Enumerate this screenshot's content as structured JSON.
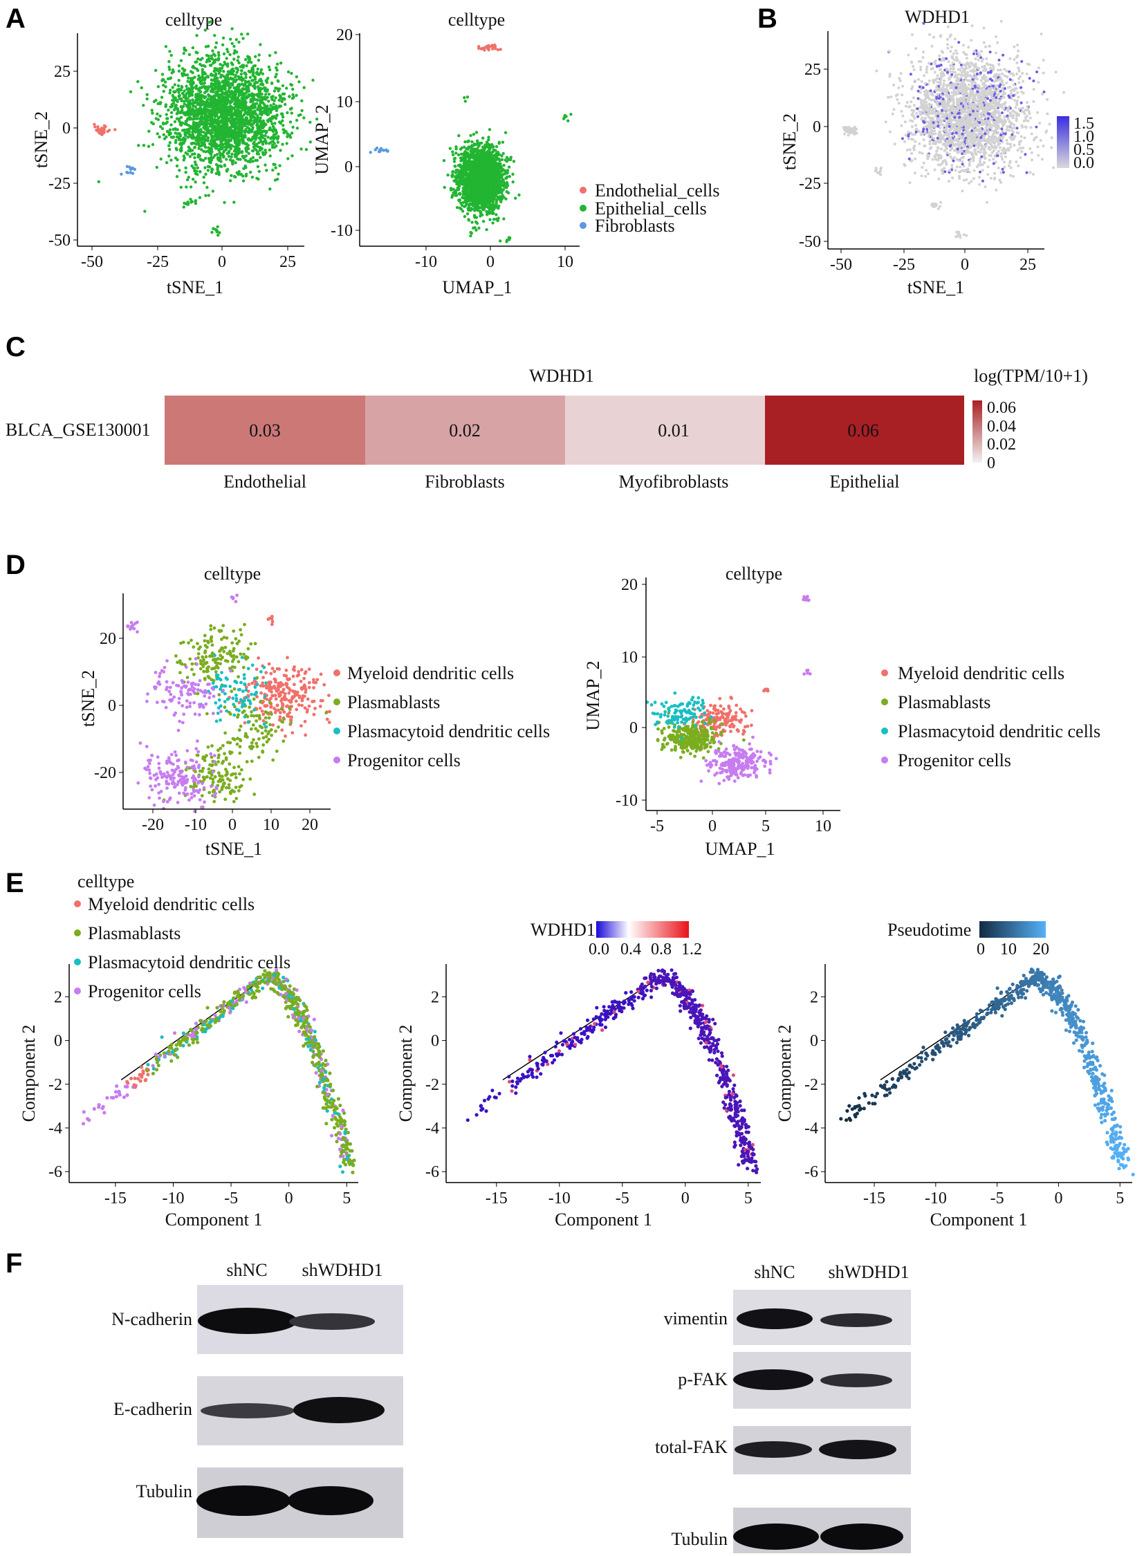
{
  "panels": [
    "A",
    "B",
    "C",
    "D",
    "E",
    "F"
  ],
  "panel_a": {
    "tsne": {
      "title": "celltype",
      "xlabel": "tSNE_1",
      "ylabel": "tSNE_2",
      "xticks": [
        "-50",
        "-25",
        "0",
        "25"
      ],
      "yticks": [
        "25",
        "0",
        "-25",
        "-50"
      ]
    },
    "umap": {
      "title": "celltype",
      "xlabel": "UMAP_1",
      "ylabel": "UMAP_2",
      "xticks": [
        "-10",
        "0",
        "10"
      ],
      "yticks": [
        "20",
        "10",
        "0",
        "-10"
      ]
    },
    "legend": [
      {
        "label": "Endothelial_cells",
        "color": "#f0706a"
      },
      {
        "label": "Epithelial_cells",
        "color": "#22b532"
      },
      {
        "label": "Fibroblasts",
        "color": "#5b98e0"
      }
    ]
  },
  "panel_b": {
    "title": "WDHD1",
    "xlabel": "tSNE_1",
    "ylabel": "tSNE_2",
    "xticks": [
      "-50",
      "-25",
      "0",
      "25"
    ],
    "yticks": [
      "25",
      "0",
      "-25",
      "-50"
    ],
    "colorbar": [
      "1.5",
      "1.0",
      "0.5",
      "0.0"
    ]
  },
  "panel_c": {
    "title": "WDHD1",
    "row_label": "BLCA_GSE130001",
    "legend_title": "log(TPM/10+1)",
    "colorbar": [
      "0.06",
      "0.04",
      "0.02",
      "0"
    ],
    "cells": [
      {
        "label": "Endothelial",
        "value": "0.03",
        "color": "#cc7877"
      },
      {
        "label": "Fibroblasts",
        "value": "0.02",
        "color": "#d8a3a5"
      },
      {
        "label": "Myofibroblasts",
        "value": "0.01",
        "color": "#e9d2d3"
      },
      {
        "label": "Epithelial",
        "value": "0.06",
        "color": "#a81f24"
      }
    ]
  },
  "panel_d": {
    "tsne": {
      "title": "celltype",
      "xlabel": "tSNE_1",
      "ylabel": "tSNE_2",
      "xticks": [
        "-20",
        "-10",
        "0",
        "10",
        "20"
      ],
      "yticks": [
        "20",
        "0",
        "-20"
      ]
    },
    "umap": {
      "title": "celltype",
      "xlabel": "UMAP_1",
      "ylabel": "UMAP_2",
      "xticks": [
        "-5",
        "0",
        "5",
        "10"
      ],
      "yticks": [
        "20",
        "10",
        "0",
        "-10"
      ]
    },
    "legend": [
      {
        "label": "Myeloid dendritic cells",
        "color": "#f0706a"
      },
      {
        "label": "Plasmablasts",
        "color": "#7aad1f"
      },
      {
        "label": "Plasmacytoid dendritic cells",
        "color": "#17bfc3"
      },
      {
        "label": "Progenitor cells",
        "color": "#c77cf0"
      }
    ]
  },
  "panel_e": {
    "legend_title": "celltype",
    "legend": [
      {
        "label": "Myeloid dendritic cells",
        "color": "#f0706a"
      },
      {
        "label": "Plasmablasts",
        "color": "#7aad1f"
      },
      {
        "label": "Plasmacytoid dendritic cells",
        "color": "#17bfc3"
      },
      {
        "label": "Progenitor cells",
        "color": "#c77cf0"
      }
    ],
    "xlabel": "Component 1",
    "ylabel": "Component 2",
    "xticks": [
      "-15",
      "-10",
      "-5",
      "0",
      "5"
    ],
    "yticks": [
      "2",
      "0",
      "-2",
      "-4",
      "-6"
    ],
    "wdhd1_bar": {
      "title": "WDHD1",
      "ticks": [
        "0.0",
        "0.4",
        "0.8",
        "1.2"
      ]
    },
    "pseudotime_bar": {
      "title": "Pseudotime",
      "ticks": [
        "0",
        "10",
        "20"
      ]
    }
  },
  "panel_f": {
    "left": {
      "lanes": [
        "shNC",
        "shWDHD1"
      ],
      "proteins": [
        "N-cadherin",
        "E-cadherin",
        "Tubulin"
      ]
    },
    "right": {
      "lanes": [
        "shNC",
        "shWDHD1"
      ],
      "proteins": [
        "vimentin",
        "p-FAK",
        "total-FAK",
        "Tubulin"
      ]
    }
  },
  "chart_data": [
    {
      "type": "scatter",
      "panel": "A-left",
      "title": "celltype",
      "xlabel": "tSNE_1",
      "ylabel": "tSNE_2",
      "xlim": [
        -55,
        30
      ],
      "ylim": [
        -52,
        40
      ],
      "series": [
        {
          "name": "Endothelial_cells",
          "clusters": [
            {
              "x": -46,
              "y": -2,
              "n": 45
            }
          ]
        },
        {
          "name": "Epithelial_cells",
          "clusters": [
            {
              "x": 0,
              "y": 5,
              "n": 2400
            },
            {
              "x": -13,
              "y": -34,
              "n": 12
            },
            {
              "x": -3,
              "y": -46,
              "n": 10
            }
          ]
        },
        {
          "name": "Fibroblasts",
          "clusters": [
            {
              "x": -35,
              "y": -19,
              "n": 12
            }
          ]
        }
      ]
    },
    {
      "type": "scatter",
      "panel": "A-right",
      "title": "celltype",
      "xlabel": "UMAP_1",
      "ylabel": "UMAP_2",
      "xlim": [
        -18,
        13
      ],
      "ylim": [
        -11,
        21
      ],
      "series": [
        {
          "name": "Endothelial_cells",
          "clusters": [
            {
              "x": 0,
              "y": 18.8,
              "n": 25
            }
          ]
        },
        {
          "name": "Epithelial_cells",
          "clusters": [
            {
              "x": -1,
              "y": -1,
              "n": 2000
            },
            {
              "x": 11,
              "y": 8.5,
              "n": 6
            },
            {
              "x": -3,
              "y": 11.5,
              "n": 3
            },
            {
              "x": 3,
              "y": -10,
              "n": 5
            }
          ]
        },
        {
          "name": "Fibroblasts",
          "clusters": [
            {
              "x": -15,
              "y": 3.5,
              "n": 14
            }
          ]
        }
      ]
    },
    {
      "type": "scatter",
      "panel": "B",
      "title": "WDHD1",
      "xlabel": "tSNE_1",
      "ylabel": "tSNE_2",
      "xlim": [
        -55,
        30
      ],
      "ylim": [
        -52,
        40
      ],
      "color_range": [
        0,
        1.5
      ]
    },
    {
      "type": "heatmap",
      "panel": "C",
      "title": "WDHD1",
      "rows": [
        "BLCA_GSE130001"
      ],
      "columns": [
        "Endothelial",
        "Fibroblasts",
        "Myofibroblasts",
        "Epithelial"
      ],
      "values": [
        [
          0.03,
          0.02,
          0.01,
          0.06
        ]
      ],
      "color_range": [
        0,
        0.06
      ],
      "legend_title": "log(TPM/10+1)"
    },
    {
      "type": "scatter",
      "panel": "D-left",
      "title": "celltype",
      "xlabel": "tSNE_1",
      "ylabel": "tSNE_2",
      "xlim": [
        -28,
        25
      ],
      "ylim": [
        -30,
        35
      ],
      "series": [
        {
          "name": "Myeloid dendritic cells",
          "clusters": [
            {
              "x": 13,
              "y": 4,
              "n": 230
            },
            {
              "x": 10,
              "y": 27,
              "n": 6
            }
          ]
        },
        {
          "name": "Plasmablasts",
          "clusters": [
            {
              "x": -5,
              "y": 15,
              "n": 150
            },
            {
              "x": 6,
              "y": -5,
              "n": 100
            },
            {
              "x": -4,
              "y": -20,
              "n": 120
            }
          ]
        },
        {
          "name": "Plasmacytoid dendritic cells",
          "clusters": [
            {
              "x": 0,
              "y": 5,
              "n": 80
            }
          ]
        },
        {
          "name": "Progenitor cells",
          "clusters": [
            {
              "x": -12,
              "y": 5,
              "n": 100
            },
            {
              "x": -14,
              "y": -20,
              "n": 160
            },
            {
              "x": -25,
              "y": 25,
              "n": 12
            },
            {
              "x": 0,
              "y": 33,
              "n": 5
            }
          ]
        }
      ]
    },
    {
      "type": "scatter",
      "panel": "D-right",
      "title": "celltype",
      "xlabel": "UMAP_1",
      "ylabel": "UMAP_2",
      "xlim": [
        -6,
        11
      ],
      "ylim": [
        -11,
        21
      ],
      "series": [
        {
          "name": "Myeloid dendritic cells",
          "clusters": [
            {
              "x": 0.5,
              "y": 1.5,
              "n": 140
            },
            {
              "x": 4.5,
              "y": 5.5,
              "n": 6
            }
          ]
        },
        {
          "name": "Plasmablasts",
          "clusters": [
            {
              "x": -2,
              "y": -1,
              "n": 300
            }
          ]
        },
        {
          "name": "Plasmacytoid dendritic cells",
          "clusters": [
            {
              "x": -3,
              "y": 2.5,
              "n": 100
            }
          ]
        },
        {
          "name": "Progenitor cells",
          "clusters": [
            {
              "x": 2,
              "y": -4.5,
              "n": 220
            },
            {
              "x": 8,
              "y": 18,
              "n": 8
            },
            {
              "x": 8,
              "y": 8,
              "n": 5
            }
          ]
        }
      ]
    },
    {
      "type": "scatter",
      "panel": "E",
      "xlabel": "Component 1",
      "ylabel": "Component 2",
      "xlim": [
        -19,
        6
      ],
      "ylim": [
        -6.5,
        3.5
      ],
      "trajectory_peak": [
        -2,
        2.9
      ],
      "series": [
        {
          "name": "Myeloid dendritic cells"
        },
        {
          "name": "Plasmablasts"
        },
        {
          "name": "Plasmacytoid dendritic cells"
        },
        {
          "name": "Progenitor cells"
        }
      ],
      "color_scales": {
        "WDHD1": [
          0,
          1.2
        ],
        "Pseudotime": [
          0,
          24
        ]
      }
    }
  ]
}
